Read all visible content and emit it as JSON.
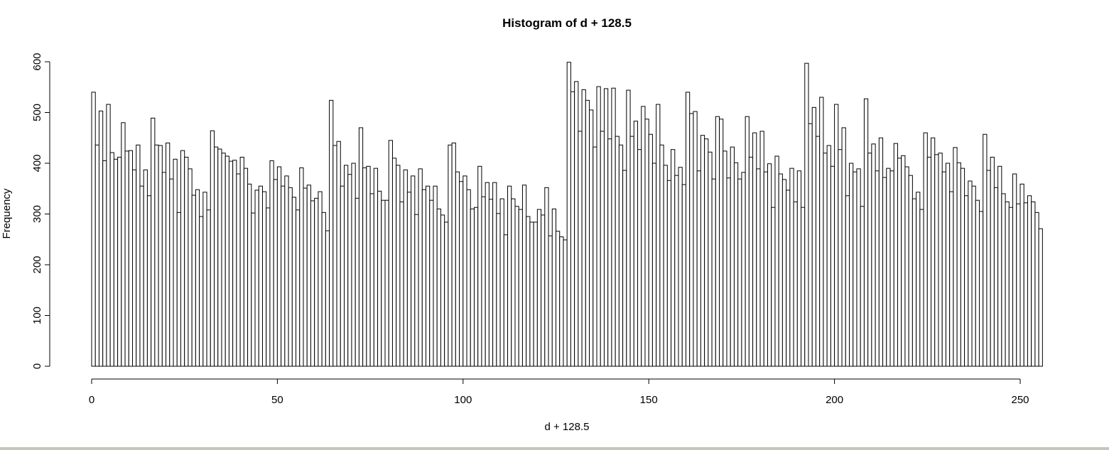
{
  "chart_data": {
    "type": "histogram",
    "title": "Histogram of d + 128.5",
    "xlabel": "d + 128.5",
    "ylabel": "Frequency",
    "bins": [
      0,
      1,
      2,
      3,
      4,
      5,
      6,
      7,
      8,
      9,
      10,
      11,
      12,
      13,
      14,
      15,
      16,
      17,
      18,
      19,
      20,
      21,
      22,
      23,
      24,
      25,
      26,
      27,
      28,
      29,
      30,
      31,
      32,
      33,
      34,
      35,
      36,
      37,
      38,
      39,
      40,
      41,
      42,
      43,
      44,
      45,
      46,
      47,
      48,
      49,
      50,
      51,
      52,
      53,
      54,
      55,
      56,
      57,
      58,
      59,
      60,
      61,
      62,
      63,
      64,
      65,
      66,
      67,
      68,
      69,
      70,
      71,
      72,
      73,
      74,
      75,
      76,
      77,
      78,
      79,
      80,
      81,
      82,
      83,
      84,
      85,
      86,
      87,
      88,
      89,
      90,
      91,
      92,
      93,
      94,
      95,
      96,
      97,
      98,
      99,
      100,
      101,
      102,
      103,
      104,
      105,
      106,
      107,
      108,
      109,
      110,
      111,
      112,
      113,
      114,
      115,
      116,
      117,
      118,
      119,
      120,
      121,
      122,
      123,
      124,
      125,
      126,
      127,
      128,
      129,
      130,
      131,
      132,
      133,
      134,
      135,
      136,
      137,
      138,
      139,
      140,
      141,
      142,
      143,
      144,
      145,
      146,
      147,
      148,
      149,
      150,
      151,
      152,
      153,
      154,
      155,
      156,
      157,
      158,
      159,
      160,
      161,
      162,
      163,
      164,
      165,
      166,
      167,
      168,
      169,
      170,
      171,
      172,
      173,
      174,
      175,
      176,
      177,
      178,
      179,
      180,
      181,
      182,
      183,
      184,
      185,
      186,
      187,
      188,
      189,
      190,
      191,
      192,
      193,
      194,
      195,
      196,
      197,
      198,
      199,
      200,
      201,
      202,
      203,
      204,
      205,
      206,
      207,
      208,
      209,
      210,
      211,
      212,
      213,
      214,
      215,
      216,
      217,
      218,
      219,
      220,
      221,
      222,
      223,
      224,
      225,
      226,
      227,
      228,
      229,
      230,
      231,
      232,
      233,
      234,
      235,
      236,
      237,
      238,
      239,
      240,
      241,
      242,
      243,
      244,
      245,
      246,
      247,
      248,
      249,
      250,
      251,
      252,
      253,
      254,
      255,
      256
    ],
    "counts": [
      540,
      436,
      503,
      405,
      516,
      421,
      408,
      412,
      480,
      424,
      425,
      387,
      436,
      355,
      387,
      336,
      489,
      436,
      435,
      382,
      440,
      369,
      408,
      303,
      425,
      412,
      389,
      337,
      348,
      295,
      343,
      308,
      464,
      432,
      428,
      420,
      414,
      404,
      406,
      379,
      412,
      390,
      359,
      302,
      347,
      355,
      344,
      312,
      405,
      368,
      393,
      355,
      375,
      352,
      333,
      308,
      391,
      351,
      357,
      326,
      331,
      344,
      303,
      267,
      524,
      435,
      443,
      355,
      396,
      378,
      400,
      331,
      470,
      391,
      394,
      340,
      390,
      345,
      327,
      327,
      445,
      410,
      396,
      324,
      387,
      343,
      375,
      299,
      389,
      348,
      355,
      327,
      355,
      310,
      298,
      284,
      436,
      440,
      383,
      364,
      375,
      348,
      310,
      313,
      394,
      334,
      362,
      329,
      362,
      301,
      330,
      259,
      355,
      330,
      315,
      309,
      357,
      295,
      284,
      284,
      309,
      298,
      352,
      257,
      310,
      266,
      255,
      249,
      599,
      541,
      561,
      463,
      545,
      524,
      505,
      432,
      551,
      463,
      547,
      448,
      548,
      453,
      436,
      386,
      544,
      453,
      483,
      427,
      512,
      487,
      457,
      400,
      516,
      436,
      396,
      366,
      427,
      376,
      392,
      358,
      540,
      498,
      502,
      385,
      455,
      448,
      422,
      369,
      492,
      487,
      424,
      371,
      432,
      401,
      369,
      382,
      492,
      412,
      460,
      389,
      463,
      383,
      399,
      313,
      414,
      379,
      368,
      347,
      390,
      324,
      385,
      313,
      597,
      478,
      510,
      453,
      530,
      420,
      435,
      394,
      516,
      427,
      470,
      336,
      400,
      383,
      389,
      315,
      527,
      420,
      438,
      385,
      450,
      372,
      390,
      385,
      439,
      410,
      415,
      393,
      376,
      330,
      343,
      309,
      460,
      412,
      450,
      417,
      420,
      383,
      400,
      344,
      431,
      401,
      390,
      336,
      365,
      355,
      327,
      305,
      457,
      386,
      412,
      352,
      394,
      340,
      324,
      313,
      379,
      320,
      359,
      322,
      336,
      324,
      303,
      271
    ],
    "fill": "#ffffff",
    "edge": "#000000",
    "xlim": [
      0,
      256
    ],
    "ylim": [
      0,
      600
    ],
    "xticks": [
      0,
      50,
      100,
      150,
      200,
      250
    ],
    "yticks": [
      0,
      100,
      200,
      300,
      400,
      500,
      600
    ]
  }
}
